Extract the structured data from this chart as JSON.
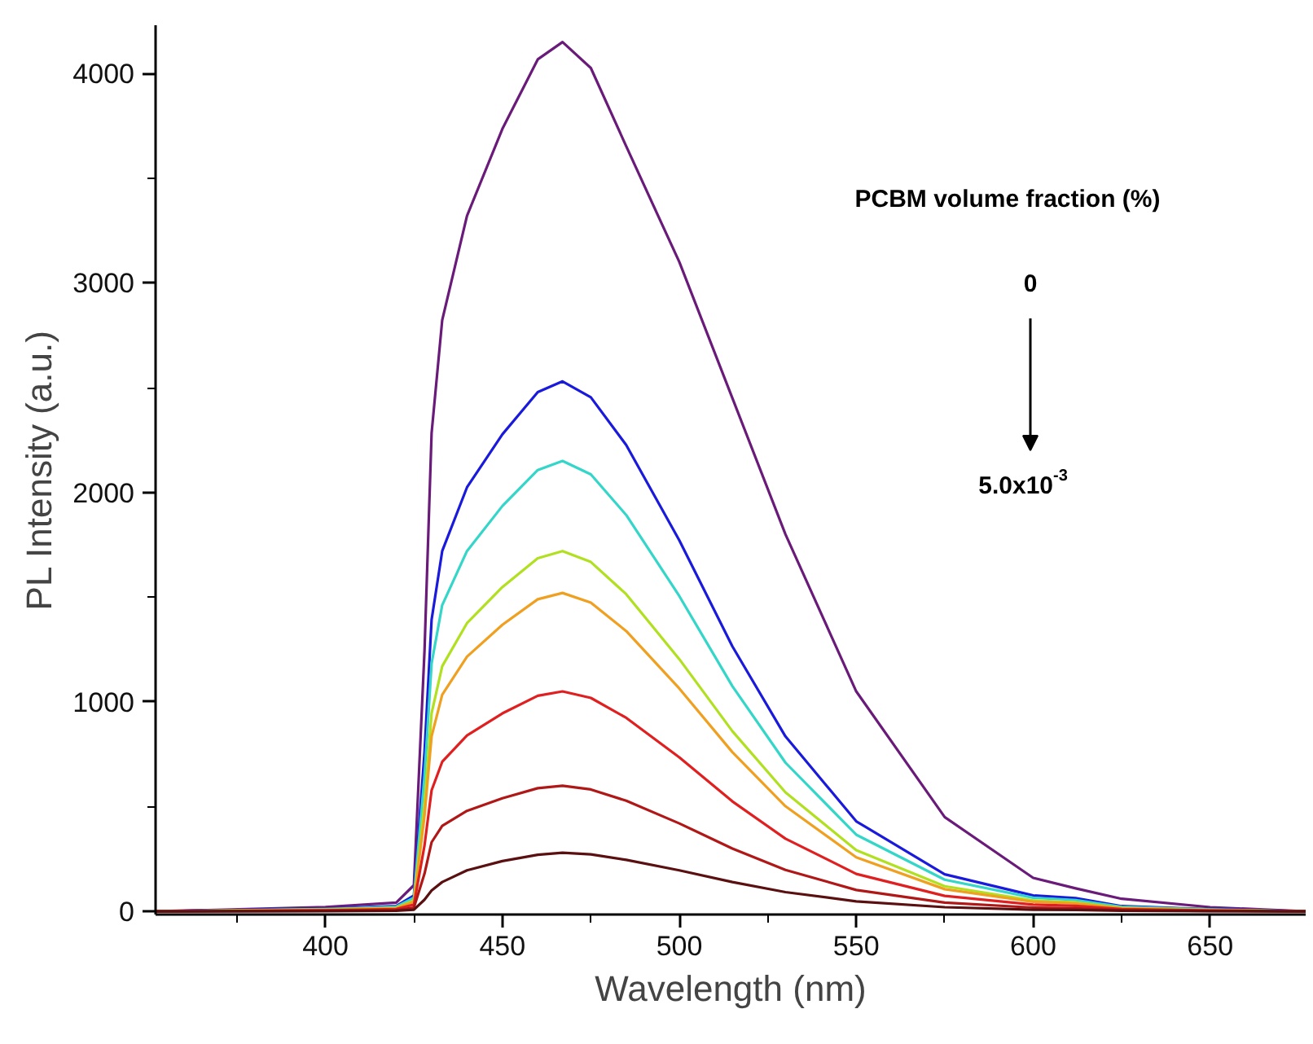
{
  "chart_data": {
    "type": "line",
    "xlabel": "Wavelength (nm)",
    "ylabel": "PL Intensity (a.u.)",
    "x": [
      352,
      400,
      420,
      425,
      428,
      430,
      433,
      440,
      450,
      460,
      467,
      475,
      485,
      500,
      515,
      530,
      550,
      575,
      600,
      612,
      625,
      650,
      677
    ],
    "series": [
      {
        "color": "#6a1b7a",
        "values": [
          0,
          21,
          42,
          125,
          1245,
          2283,
          2822,
          3320,
          3735,
          4067,
          4150,
          4026,
          3652,
          3100,
          2450,
          1800,
          1050,
          450,
          160,
          110,
          60,
          20,
          0
        ]
      },
      {
        "color": "#1a1adc",
        "values": [
          0,
          13,
          25,
          76,
          759,
          1392,
          1720,
          2024,
          2277,
          2479,
          2530,
          2454,
          2226,
          1771,
          1265,
          835,
          430,
          177,
          76,
          63,
          25,
          10,
          0
        ]
      },
      {
        "color": "#33d6c8",
        "values": [
          0,
          11,
          22,
          65,
          645,
          1183,
          1462,
          1720,
          1935,
          2107,
          2150,
          2086,
          1892,
          1505,
          1075,
          710,
          366,
          151,
          65,
          54,
          22,
          9,
          0
        ]
      },
      {
        "color": "#b0e020",
        "values": [
          0,
          9,
          17,
          52,
          516,
          946,
          1170,
          1376,
          1548,
          1686,
          1720,
          1668,
          1514,
          1204,
          860,
          568,
          292,
          120,
          52,
          43,
          17,
          7,
          0
        ]
      },
      {
        "color": "#f0a020",
        "values": [
          0,
          8,
          15,
          46,
          456,
          836,
          1034,
          1216,
          1368,
          1490,
          1520,
          1474,
          1338,
          1064,
          760,
          502,
          258,
          106,
          46,
          38,
          15,
          6,
          0
        ]
      },
      {
        "color": "#e02020",
        "values": [
          0,
          5,
          11,
          32,
          315,
          578,
          714,
          840,
          945,
          1029,
          1050,
          1019,
          924,
          735,
          525,
          347,
          179,
          74,
          32,
          26,
          11,
          4,
          0
        ]
      },
      {
        "color": "#b01818",
        "values": [
          0,
          3,
          6,
          18,
          180,
          330,
          408,
          480,
          540,
          588,
          600,
          582,
          528,
          420,
          300,
          198,
          102,
          42,
          18,
          15,
          6,
          2,
          0
        ]
      },
      {
        "color": "#5a1010",
        "values": [
          0,
          1,
          3,
          8,
          56,
          100,
          140,
          196,
          240,
          270,
          280,
          272,
          246,
          196,
          140,
          92,
          48,
          20,
          8,
          7,
          3,
          1,
          0
        ]
      }
    ],
    "xlim": [
      352,
      677
    ],
    "ylim": [
      -15,
      4230
    ],
    "xticks": [
      {
        "value": 375,
        "label": null
      },
      400,
      {
        "value": 425,
        "label": null
      },
      450,
      {
        "value": 475,
        "label": null
      },
      500,
      {
        "value": 525,
        "label": null
      },
      550,
      {
        "value": 575,
        "label": null
      },
      600,
      {
        "value": 625,
        "label": null
      },
      650
    ],
    "yticks": [
      0,
      {
        "value": 500,
        "label": null
      },
      1000,
      {
        "value": 1500,
        "label": null
      },
      2000,
      {
        "value": 2500,
        "label": null
      },
      3000,
      {
        "value": 3500,
        "label": null
      },
      4000
    ],
    "annotations": [
      "PCBM volume fraction (%)",
      "0",
      "5.0x10$^{-3}$"
    ],
    "grid": false,
    "marker": "none",
    "line_style": "solid"
  }
}
